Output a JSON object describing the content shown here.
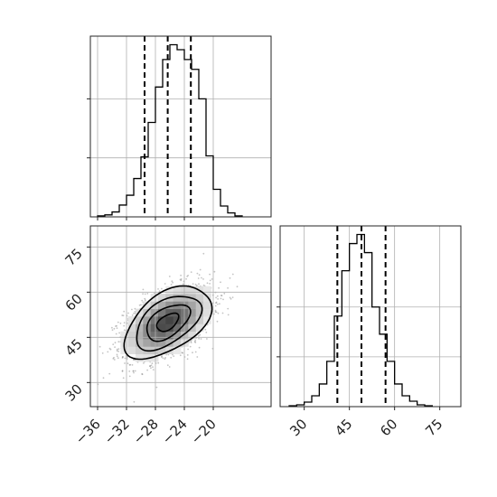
{
  "chart_data": [
    {
      "type": "histogram",
      "panel": "top-left",
      "parameter_axis": "x",
      "xlim": [
        -37,
        -12
      ],
      "grid": true,
      "bins_left_edge": -36,
      "bin_width": 1,
      "counts": [
        1,
        2,
        5,
        12,
        22,
        39,
        61,
        96,
        132,
        160,
        175,
        170,
        160,
        150,
        120,
        62,
        28,
        11,
        4,
        1
      ],
      "quantiles": [
        -29.5,
        -26.3,
        -23.1
      ],
      "xticks": [
        "−36",
        "−32",
        "−28",
        "−24",
        "−20"
      ],
      "xtick_values": [
        -36,
        -32,
        -28,
        -24,
        -20
      ]
    },
    {
      "type": "heatmap",
      "panel": "bottom-left",
      "xlim": [
        -37,
        -12
      ],
      "ylim": [
        22,
        82
      ],
      "grid": true,
      "mean": [
        -26.3,
        50
      ],
      "std": [
        3.0,
        6.0
      ],
      "correlation": 0.5,
      "contour_levels_sigma": [
        0.5,
        1.0,
        1.5,
        2.0
      ],
      "xticks": [
        "−36",
        "−32",
        "−28",
        "−24",
        "−20"
      ],
      "xtick_values": [
        -36,
        -32,
        -28,
        -24,
        -20
      ],
      "yticks": [
        "30",
        "45",
        "60",
        "75"
      ],
      "ytick_values": [
        30,
        45,
        60,
        75
      ]
    },
    {
      "type": "histogram",
      "panel": "bottom-right",
      "parameter_axis": "y",
      "xlim": [
        22,
        82
      ],
      "grid": true,
      "bins_left_edge": 25,
      "bin_width": 2.5,
      "counts": [
        1,
        2,
        5,
        12,
        25,
        50,
        100,
        150,
        180,
        190,
        170,
        110,
        80,
        50,
        25,
        12,
        6,
        2,
        1
      ],
      "quantiles": [
        41,
        49,
        57
      ],
      "xticks": [
        "30",
        "45",
        "60",
        "75"
      ],
      "xtick_values": [
        30,
        45,
        60,
        75
      ]
    }
  ]
}
